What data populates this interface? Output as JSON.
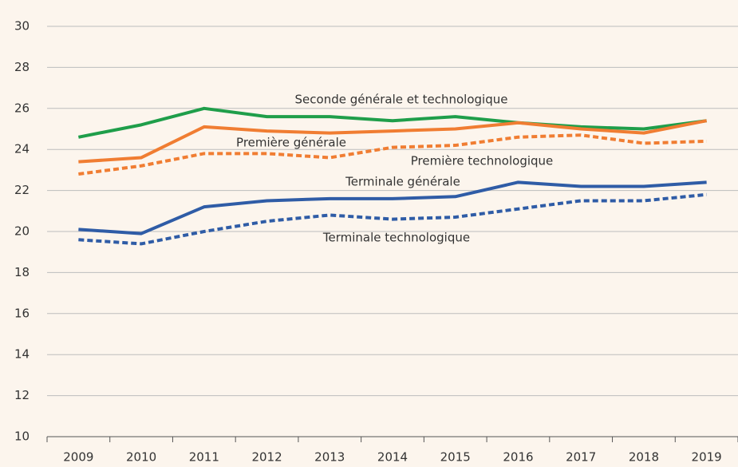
{
  "chart_data": {
    "type": "line",
    "categories": [
      "2009",
      "2010",
      "2011",
      "2012",
      "2013",
      "2014",
      "2015",
      "2016",
      "2017",
      "2018",
      "2019"
    ],
    "series": [
      {
        "name": "Seconde générale et technologique",
        "color": "#1f9e4a",
        "dashed": false,
        "values": [
          24.6,
          25.2,
          26.0,
          25.6,
          25.6,
          25.4,
          25.6,
          25.3,
          25.1,
          25.0,
          25.4
        ]
      },
      {
        "name": "Première générale",
        "color": "#f07d32",
        "dashed": false,
        "values": [
          23.4,
          23.6,
          25.1,
          24.9,
          24.8,
          24.9,
          25.0,
          25.3,
          25.0,
          24.8,
          25.4
        ]
      },
      {
        "name": "Première technologique",
        "color": "#f07d32",
        "dashed": true,
        "values": [
          22.8,
          23.2,
          23.8,
          23.8,
          23.6,
          24.1,
          24.2,
          24.6,
          24.7,
          24.3,
          24.4
        ]
      },
      {
        "name": "Terminale générale",
        "color": "#2f5ca6",
        "dashed": false,
        "values": [
          20.1,
          19.9,
          21.2,
          21.5,
          21.6,
          21.6,
          21.7,
          22.4,
          22.2,
          22.2,
          22.4
        ]
      },
      {
        "name": "Terminale technologique",
        "color": "#2f5ca6",
        "dashed": true,
        "values": [
          19.6,
          19.4,
          20.0,
          20.5,
          20.8,
          20.6,
          20.7,
          21.1,
          21.5,
          21.5,
          21.8
        ]
      }
    ],
    "ylim": [
      10,
      30
    ],
    "yticks": [
      10,
      12,
      14,
      16,
      18,
      20,
      22,
      24,
      26,
      28,
      30
    ],
    "grid": true
  }
}
